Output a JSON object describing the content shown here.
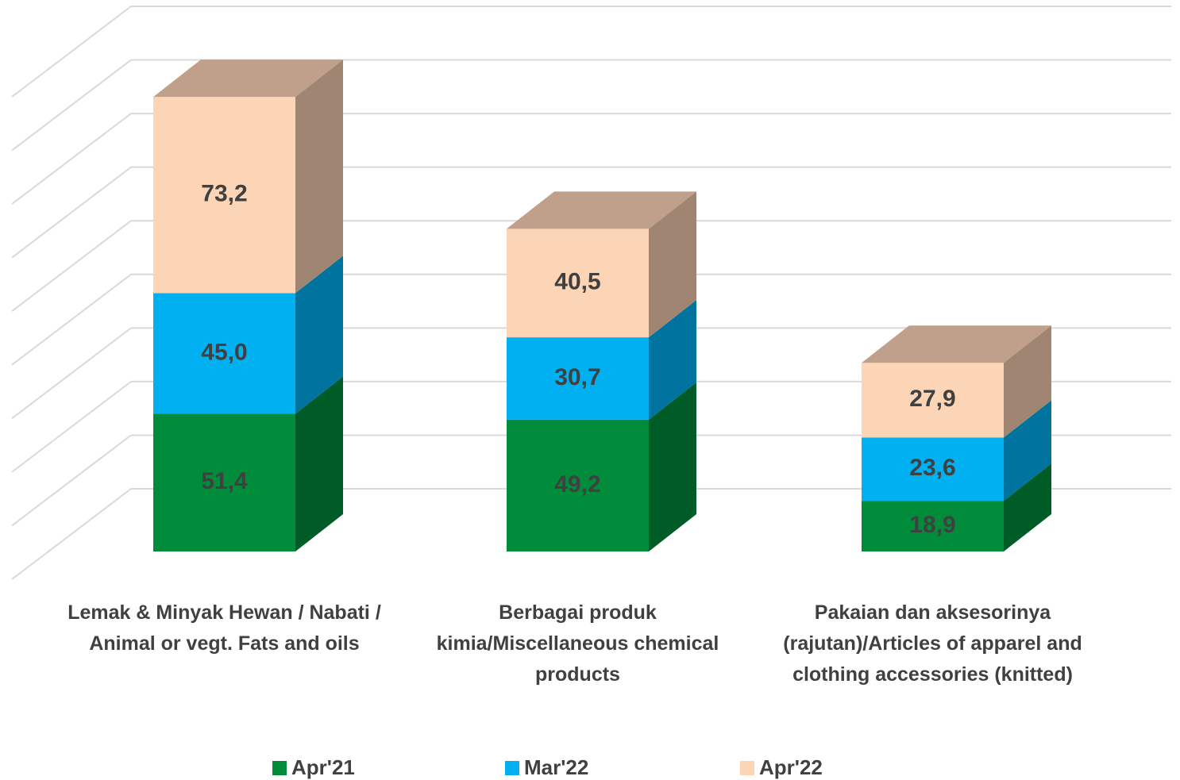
{
  "chart_data": {
    "type": "bar3d_stacked",
    "categories": [
      "Lemak & Minyak Hewan / Nabati / Animal or vegt. Fats and oils",
      "Berbagai produk kimia/Miscellaneous chemical products",
      "Pakaian dan aksesorinya (rajutan)/Articles of apparel and clothing accessories (knitted)"
    ],
    "series": [
      {
        "name": "Apr'21",
        "color": "#008C3A",
        "values": [
          51.4,
          49.2,
          18.9
        ],
        "value_labels": [
          "51,4",
          "49,2",
          "18,9"
        ]
      },
      {
        "name": "Mar'22",
        "color": "#00B0F0",
        "values": [
          45.0,
          30.7,
          23.6
        ],
        "value_labels": [
          "45,0",
          "30,7",
          "23,6"
        ]
      },
      {
        "name": "Apr'22",
        "color": "#FBD5B5",
        "values": [
          73.2,
          40.5,
          27.9
        ],
        "value_labels": [
          "73,2",
          "40,5",
          "27,9"
        ]
      }
    ],
    "ylim": [
      0,
      180
    ],
    "yticks": [
      0,
      20,
      40,
      60,
      80,
      100,
      120,
      140,
      160,
      180
    ],
    "grid": true,
    "legend": "bottom"
  }
}
